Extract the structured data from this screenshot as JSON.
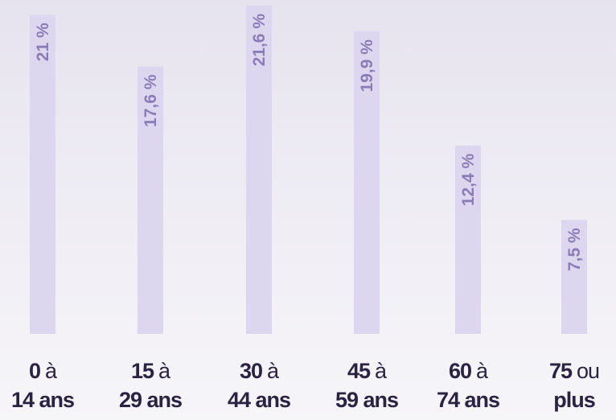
{
  "chart_data": {
    "type": "bar",
    "categories": [
      {
        "from": "0",
        "sep": "à",
        "to": "14 ans"
      },
      {
        "from": "15",
        "sep": "à",
        "to": "29 ans"
      },
      {
        "from": "30",
        "sep": "à",
        "to": "44 ans"
      },
      {
        "from": "45",
        "sep": "à",
        "to": "59 ans"
      },
      {
        "from": "60",
        "sep": "à",
        "to": "74 ans"
      },
      {
        "from": "75",
        "sep": "ou",
        "to": "plus"
      }
    ],
    "values": [
      21,
      17.6,
      21.6,
      19.9,
      12.4,
      7.5
    ],
    "value_labels": [
      "21 %",
      "17,6 %",
      "21,6 %",
      "19,9 %",
      "12,4 %",
      "7,5 %"
    ],
    "color": "#dcd6ef"
  }
}
